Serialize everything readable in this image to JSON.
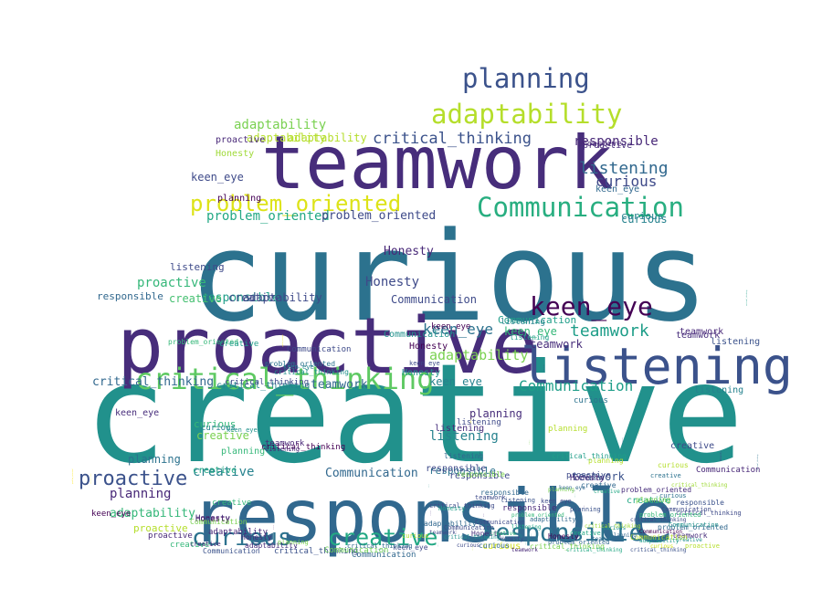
{
  "words": [
    {
      "text": "creative",
      "color": "#21918c"
    },
    {
      "text": "curious",
      "color": "#2c728e"
    },
    {
      "text": "teamwork",
      "color": "#472d7b"
    },
    {
      "text": "proactive",
      "color": "#472d7b"
    },
    {
      "text": "responsible",
      "color": "#31688e"
    },
    {
      "text": "listening",
      "color": "#3b528b"
    },
    {
      "text": "critical_thinking",
      "color": "#5ec962"
    },
    {
      "text": "Communication",
      "color": "#28ae80"
    },
    {
      "text": "problem_oriented",
      "color": "#dde318"
    },
    {
      "text": "keen_eye",
      "color": "#440154"
    },
    {
      "text": "adaptability",
      "color": "#b5de2b"
    },
    {
      "text": "planning",
      "color": "#3b528b"
    },
    {
      "text": "Honesty",
      "color": "#3e4a89"
    },
    {
      "text": "responsible",
      "color": "#2c728e"
    },
    {
      "text": "creative",
      "color": "#22a884"
    },
    {
      "text": "curious",
      "color": "#2c728e"
    },
    {
      "text": "proactive",
      "color": "#3b528b"
    },
    {
      "text": "teamwork",
      "color": "#1f9e89"
    },
    {
      "text": "keen_eye",
      "color": "#2c728e"
    },
    {
      "text": "listening",
      "color": "#26828e"
    },
    {
      "text": "Communication",
      "color": "#1f9e89"
    },
    {
      "text": "critical_thinking",
      "color": "#3b528b"
    },
    {
      "text": "responsible",
      "color": "#482878"
    },
    {
      "text": "adaptability",
      "color": "#7ad151"
    },
    {
      "text": "adaptability",
      "color": "#7ad151"
    },
    {
      "text": "critical_thinking",
      "color": "#2c728e"
    },
    {
      "text": "critical_thinking",
      "color": "#1f9e89"
    },
    {
      "text": "problem_oriented",
      "color": "#22a884"
    },
    {
      "text": "problem_oriented",
      "color": "#fde725"
    },
    {
      "text": "Honesty",
      "color": "#482878"
    },
    {
      "text": "listening",
      "color": "#31688e"
    },
    {
      "text": "curious",
      "color": "#3e4a89"
    },
    {
      "text": "planning",
      "color": "#482878"
    },
    {
      "text": "Communication",
      "color": "#3e4a89"
    },
    {
      "text": "teamwork",
      "color": "#31688e"
    },
    {
      "text": "teamwork",
      "color": "#3b528b"
    },
    {
      "text": "keen_eye",
      "color": "#35b779"
    },
    {
      "text": "keen_eye",
      "color": "#26828e"
    },
    {
      "text": "responsible",
      "color": "#1f9e89"
    },
    {
      "text": "creative",
      "color": "#44bf70"
    },
    {
      "text": "adaptability",
      "color": "#3e4a89"
    },
    {
      "text": "proactive",
      "color": "#35b779"
    },
    {
      "text": "Honesty",
      "color": "#3e4a89"
    },
    {
      "text": "Communication",
      "color": "#31688e"
    },
    {
      "text": "planning",
      "color": "#2c728e"
    },
    {
      "text": "curious",
      "color": "#26828e"
    },
    {
      "text": "listening",
      "color": "#3e4a89"
    },
    {
      "text": "creative",
      "color": "#26828e"
    },
    {
      "text": "teamwork",
      "color": "#472d7b"
    },
    {
      "text": "responsible",
      "color": "#2c728e"
    },
    {
      "text": "keen_eye",
      "color": "#3e4a89"
    },
    {
      "text": "Communication",
      "color": "#1f9e89"
    },
    {
      "text": "proactive",
      "color": "#472d7b"
    },
    {
      "text": "planning",
      "color": "#440154"
    },
    {
      "text": "curious",
      "color": "#35b779"
    },
    {
      "text": "creative",
      "color": "#7ad151"
    },
    {
      "text": "problem_oriented",
      "color": "#3e4a89"
    },
    {
      "text": "critical_thinking",
      "color": "#31688e"
    },
    {
      "text": "adaptability",
      "color": "#35b779"
    },
    {
      "text": "Honesty",
      "color": "#21918c"
    },
    {
      "text": "adaptability",
      "color": "#b5de2b"
    },
    {
      "text": "adaptability",
      "color": "#b5de2b"
    },
    {
      "text": "responsible",
      "color": "#31688e"
    },
    {
      "text": "critical_thinking",
      "color": "#26828e"
    },
    {
      "text": "Honesty",
      "color": "#440154"
    },
    {
      "text": "Honesty",
      "color": "#a0da39"
    },
    {
      "text": "proactive",
      "color": "#b5de2b"
    },
    {
      "text": "proactive",
      "color": "#482878"
    },
    {
      "text": "creative",
      "color": "#3e4a89"
    },
    {
      "text": "creative",
      "color": "#22a884"
    },
    {
      "text": "teamwork",
      "color": "#472d7b"
    },
    {
      "text": "listening",
      "color": "#3b528b"
    },
    {
      "text": "listening",
      "color": "#26828e"
    },
    {
      "text": "curious",
      "color": "#2c728e"
    },
    {
      "text": "curious",
      "color": "#d2e21b"
    },
    {
      "text": "problem_oriented",
      "color": "#fde725"
    },
    {
      "text": "Communication",
      "color": "#21918c"
    },
    {
      "text": "keen_eye",
      "color": "#440154"
    },
    {
      "text": "keen_eye",
      "color": "#472d7b"
    },
    {
      "text": "planning",
      "color": "#472d7b"
    },
    {
      "text": "planning",
      "color": "#35b779"
    },
    {
      "text": "responsible",
      "color": "#3e4a89"
    },
    {
      "text": "teamwork",
      "color": "#482878"
    },
    {
      "text": "creative",
      "color": "#3e4a89"
    },
    {
      "text": "adaptability",
      "color": "#482878"
    },
    {
      "text": "Communication",
      "color": "#31688e"
    },
    {
      "text": "Honesty",
      "color": "#440154"
    },
    {
      "text": "proactive",
      "color": "#482878"
    },
    {
      "text": "critical_thinking",
      "color": "#440154"
    },
    {
      "text": "critical_thinking",
      "color": "#3e4a89"
    },
    {
      "text": "problem_oriented",
      "color": "#fde725"
    },
    {
      "text": "listening",
      "color": "#472d7b"
    },
    {
      "text": "curious",
      "color": "#26828e"
    },
    {
      "text": "teamwork",
      "color": "#482878"
    },
    {
      "text": "keen_eye",
      "color": "#31688e"
    },
    {
      "text": "planning",
      "color": "#b5de2b"
    },
    {
      "text": "creative",
      "color": "#22a884"
    },
    {
      "text": "responsible",
      "color": "#3e4a89"
    },
    {
      "text": "Communication",
      "color": "#3e4a89"
    },
    {
      "text": "adaptability",
      "color": "#472d7b"
    },
    {
      "text": "Honesty",
      "color": "#472d7b"
    },
    {
      "text": "proactive",
      "color": "#482878"
    },
    {
      "text": "curious",
      "color": "#26828e"
    },
    {
      "text": "listening",
      "color": "#3e4a89"
    },
    {
      "text": "creative",
      "color": "#35b779"
    },
    {
      "text": "keen_eye",
      "color": "#440154"
    },
    {
      "text": "problem_oriented",
      "color": "#fde725"
    },
    {
      "text": "problem_oriented",
      "color": "#35b779"
    },
    {
      "text": "critical_thinking",
      "color": "#21918c"
    },
    {
      "text": "critical_thinking",
      "color": "#3b528b"
    },
    {
      "text": "responsible",
      "color": "#3e4a89"
    },
    {
      "text": "responsible",
      "color": "#7ad151"
    },
    {
      "text": "Communication",
      "color": "#6ece58"
    },
    {
      "text": "Communication",
      "color": "#482878"
    },
    {
      "text": "teamwork",
      "color": "#472d7b"
    },
    {
      "text": "teamwork",
      "color": "#21918c"
    },
    {
      "text": "planning",
      "color": "#b5de2b"
    },
    {
      "text": "planning",
      "color": "#b5de2b"
    },
    {
      "text": "listening",
      "color": "#26828e"
    },
    {
      "text": "listening",
      "color": "#1f9e89"
    },
    {
      "text": "curious",
      "color": "#31688e"
    },
    {
      "text": "curious",
      "color": "#b5de2b"
    },
    {
      "text": "creative",
      "color": "#35b779"
    },
    {
      "text": "creative",
      "color": "#1f9e89"
    },
    {
      "text": "Honesty",
      "color": "#482878"
    },
    {
      "text": "proactive",
      "color": "#3e4a89"
    },
    {
      "text": "adaptability",
      "color": "#472d7b"
    },
    {
      "text": "keen_eye",
      "color": "#3e4a89"
    },
    {
      "text": "Communication",
      "color": "#3b528b"
    },
    {
      "text": "Communication",
      "color": "#7ad151"
    },
    {
      "text": "responsible",
      "color": "#482878"
    },
    {
      "text": "creative",
      "color": "#1f9e89"
    },
    {
      "text": "curious",
      "color": "#b5de2b"
    },
    {
      "text": "teamwork",
      "color": "#7ad151"
    },
    {
      "text": "planning",
      "color": "#440154"
    },
    {
      "text": "problem_oriented",
      "color": "#31688e"
    },
    {
      "text": "critical_thinking",
      "color": "#1f9e89"
    },
    {
      "text": "Honesty",
      "color": "#482878"
    },
    {
      "text": "keen_eye",
      "color": "#3e4a89"
    },
    {
      "text": "adaptability",
      "color": "#31688e"
    },
    {
      "text": "proactive",
      "color": "#472d7b"
    },
    {
      "text": "listening",
      "color": "#31688e"
    },
    {
      "text": "responsible",
      "color": "#3b528b"
    },
    {
      "text": "critical_thinking",
      "color": "#3e4a89"
    },
    {
      "text": "problem_oriented",
      "color": "#472d7b"
    },
    {
      "text": "problem_oriented",
      "color": "#2c728e"
    },
    {
      "text": "critical_thinking",
      "color": "#31688e"
    },
    {
      "text": "Honesty",
      "color": "#440154"
    },
    {
      "text": "keen_eye",
      "color": "#26828e"
    },
    {
      "text": "planning",
      "color": "#7ad151"
    },
    {
      "text": "curious",
      "color": "#2c728e"
    },
    {
      "text": "teamwork",
      "color": "#482878"
    },
    {
      "text": "creative",
      "color": "#2c728e"
    },
    {
      "text": "Communication",
      "color": "#3e4a89"
    },
    {
      "text": "adaptability",
      "color": "#482878"
    },
    {
      "text": "critical_thinking",
      "color": "#3e4a89"
    },
    {
      "text": "creative",
      "color": "#472d7b"
    },
    {
      "text": "planning",
      "color": "#7ad151"
    },
    {
      "text": "Honesty",
      "color": "#472d7b"
    },
    {
      "text": "listening",
      "color": "#482878"
    },
    {
      "text": "keen_eye",
      "color": "#21918c"
    },
    {
      "text": "curious",
      "color": "#21918c"
    },
    {
      "text": "problem_oriented",
      "color": "#31688e"
    },
    {
      "text": "responsible",
      "color": "#31688e"
    },
    {
      "text": "adaptability",
      "color": "#35b779"
    },
    {
      "text": "creative",
      "color": "#31688e"
    },
    {
      "text": "critical_thinking",
      "color": "#7ad151"
    },
    {
      "text": "Honesty",
      "color": "#1f9e89"
    },
    {
      "text": "Communication",
      "color": "#21918c"
    },
    {
      "text": "Communication",
      "color": "#b5de2b"
    },
    {
      "text": "curious",
      "color": "#d2e21b"
    },
    {
      "text": "proactive",
      "color": "#b5de2b"
    },
    {
      "text": "teamwork",
      "color": "#3e4a89"
    },
    {
      "text": "listening",
      "color": "#3b528b"
    },
    {
      "text": "keen_eye",
      "color": "#3e4a89"
    },
    {
      "text": "problem_oriented",
      "color": "#7ad151"
    },
    {
      "text": "creative",
      "color": "#22a884"
    },
    {
      "text": "responsible",
      "color": "#482878"
    },
    {
      "text": "Communication",
      "color": "#3e4a89"
    },
    {
      "text": "Communication",
      "color": "#3e4a89"
    },
    {
      "text": "curious",
      "color": "#b5de2b"
    },
    {
      "text": "teamwork",
      "color": "#21918c"
    },
    {
      "text": "adaptability",
      "color": "#31688e"
    },
    {
      "text": "Honesty",
      "color": "#472d7b"
    },
    {
      "text": "planning",
      "color": "#3b528b"
    },
    {
      "text": "problem_oriented",
      "color": "#35b779"
    },
    {
      "text": "critical_thinking",
      "color": "#a0da39"
    },
    {
      "text": "curious",
      "color": "#21918c"
    },
    {
      "text": "critical_thinking",
      "color": "#a0da39"
    },
    {
      "text": "listening",
      "color": "#22a884"
    },
    {
      "text": "creative",
      "color": "#21918c"
    },
    {
      "text": "teamwork",
      "color": "#3e4a89"
    },
    {
      "text": "problem_oriented",
      "color": "#35b779"
    },
    {
      "text": "keen_eye",
      "color": "#31688e"
    },
    {
      "text": "critical_thinking",
      "color": "#3e4a89"
    },
    {
      "text": "listening",
      "color": "#1f9e89"
    },
    {
      "text": "creative",
      "color": "#22a884"
    },
    {
      "text": "planning",
      "color": "#7ad151"
    },
    {
      "text": "adaptability",
      "color": "#26828e"
    },
    {
      "text": "critical_thinking",
      "color": "#21918c"
    },
    {
      "text": "Honesty",
      "color": "#3e4a89"
    },
    {
      "text": "listening",
      "color": "#26828e"
    },
    {
      "text": "curious",
      "color": "#3e4a89"
    },
    {
      "text": "Communication",
      "color": "#440154"
    },
    {
      "text": "creative",
      "color": "#21918c"
    },
    {
      "text": "teamwork",
      "color": "#482878"
    },
    {
      "text": "critical_thinking",
      "color": "#3b528b"
    },
    {
      "text": "critical_thinking",
      "color": "#22a884"
    },
    {
      "text": "problem_oriented",
      "color": "#482878"
    },
    {
      "text": "creative",
      "color": "#35b779"
    },
    {
      "text": "teamwork",
      "color": "#31688e"
    },
    {
      "text": "planning",
      "color": "#31688e"
    },
    {
      "text": "adaptability",
      "color": "#1f9e89"
    },
    {
      "text": "curious",
      "color": "#d2e21b"
    },
    {
      "text": "Communication",
      "color": "#fde725"
    },
    {
      "text": "responsible",
      "color": "#482878"
    },
    {
      "text": "Honesty",
      "color": "#472d7b"
    },
    {
      "text": "creative",
      "color": "#26828e"
    },
    {
      "text": "problem_oriented",
      "color": "#3e4a89"
    },
    {
      "text": "critical_thinking",
      "color": "#b5de2b"
    },
    {
      "text": "creative",
      "color": "#1f9e89"
    },
    {
      "text": "curious",
      "color": "#472d7b"
    },
    {
      "text": "Communication",
      "color": "#21918c"
    },
    {
      "text": "teamwork",
      "color": "#31688e"
    },
    {
      "text": "Honesty",
      "color": "#482878"
    },
    {
      "text": "keen_eye",
      "color": "#1f9e89"
    },
    {
      "text": "listening",
      "color": "#1f9e89"
    },
    {
      "text": "critical_thinking",
      "color": "#7ad151"
    },
    {
      "text": "curious",
      "color": "#3e4a89"
    },
    {
      "text": "Communication",
      "color": "#3e4a89"
    }
  ]
}
